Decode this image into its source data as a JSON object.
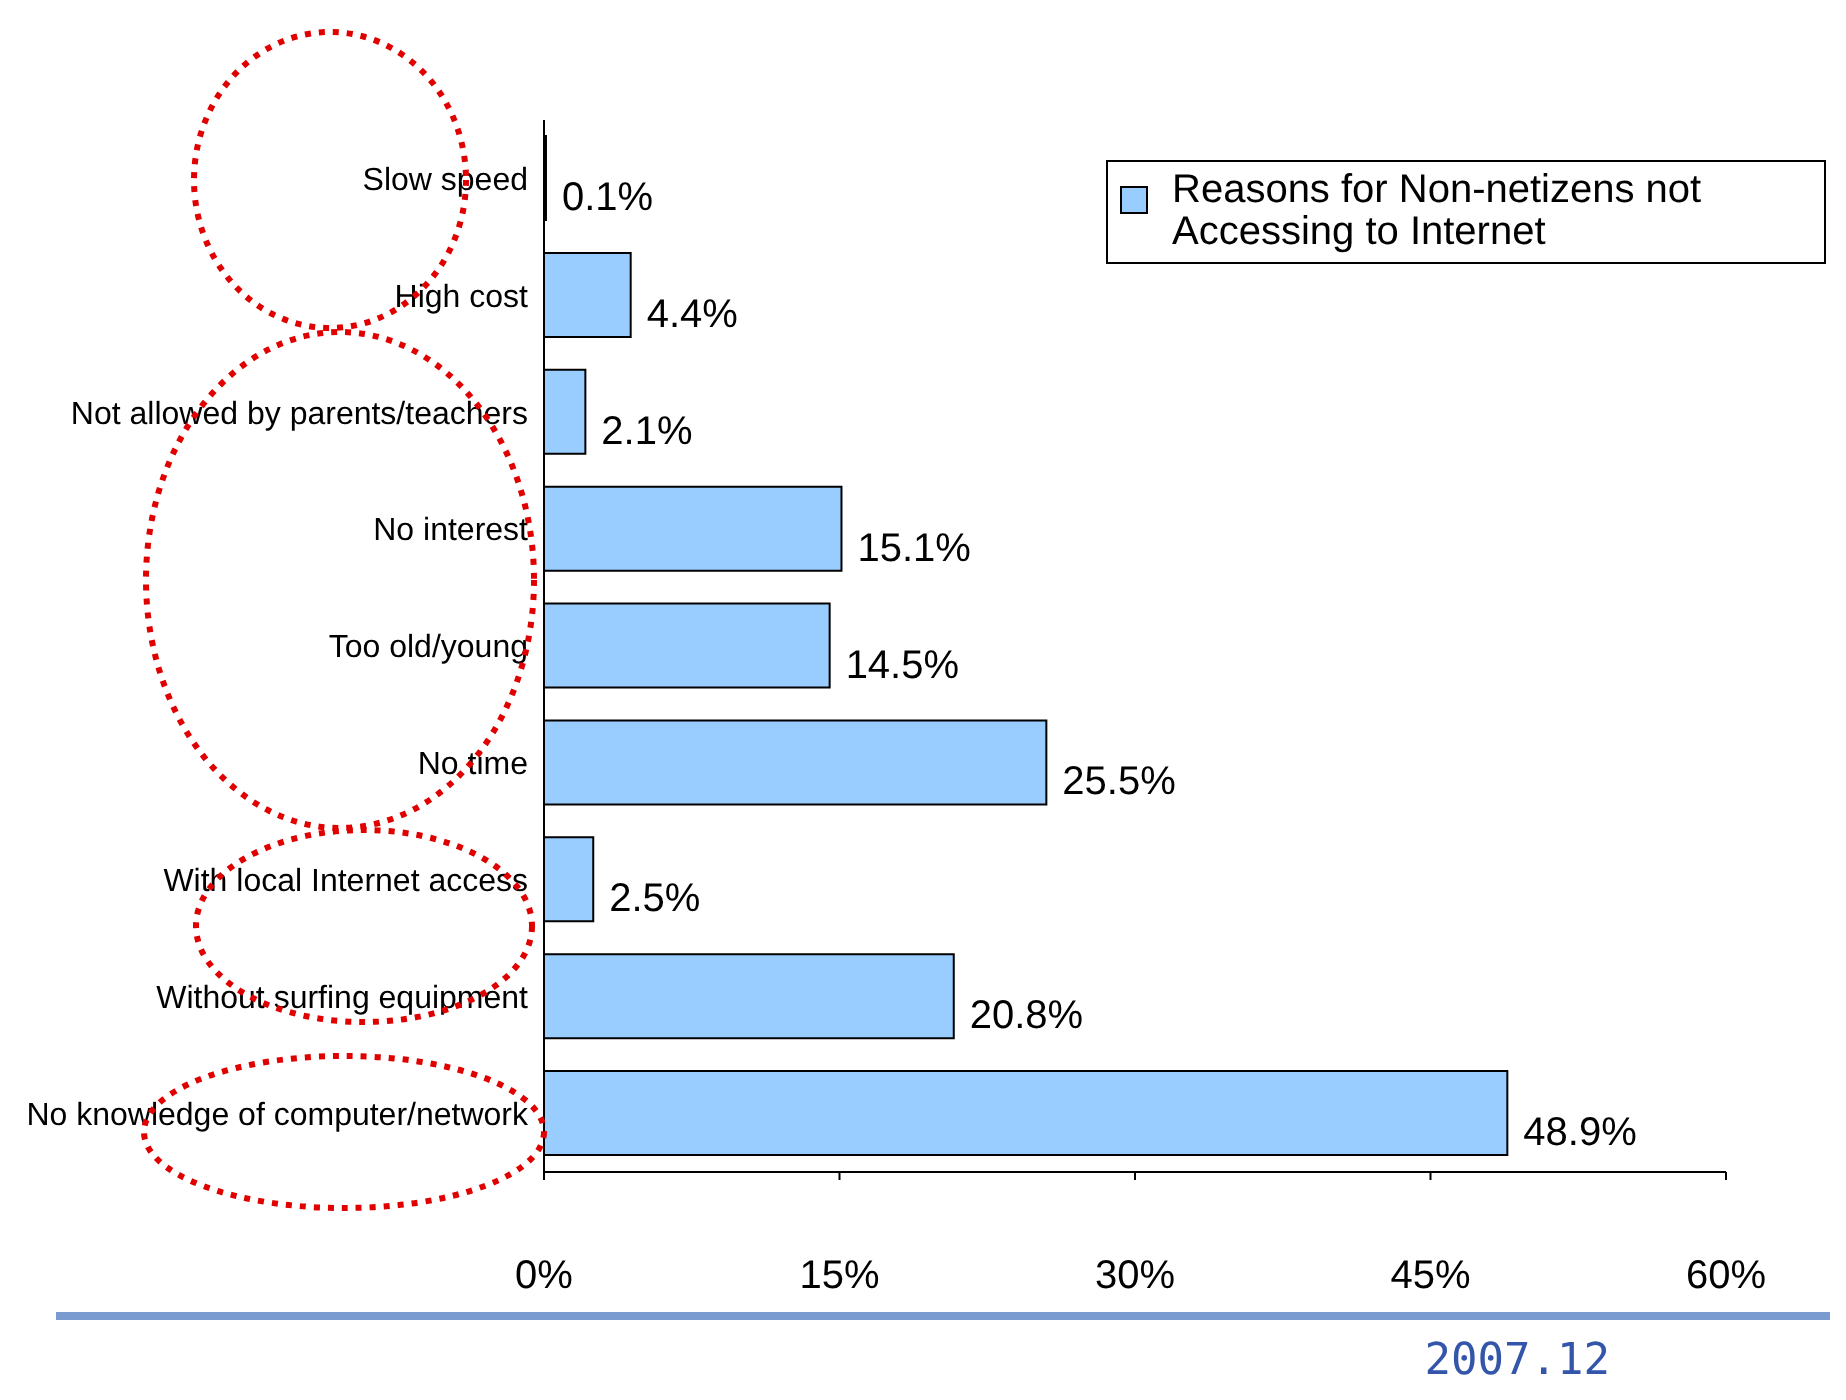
{
  "chart_data": {
    "type": "bar",
    "orientation": "horizontal",
    "categories": [
      "Slow speed",
      "High cost",
      "Not allowed by parents/teachers",
      "No interest",
      "Too old/young",
      "No time",
      "With local Internet access",
      "Without surfing equipment",
      "No knowledge of computer/network"
    ],
    "series": [
      {
        "name": "Reasons for Non-netizens not Accessing to Internet",
        "color": "#99ccff",
        "values": [
          0.1,
          4.4,
          2.1,
          15.1,
          14.5,
          25.5,
          2.5,
          20.8,
          48.9
        ],
        "value_labels": [
          "0.1%",
          "4.4%",
          "2.1%",
          "15.1%",
          "14.5%",
          "25.5%",
          "2.5%",
          "20.8%",
          "48.9%"
        ]
      }
    ],
    "xlim": [
      0,
      60
    ],
    "xticks": [
      {
        "value": 0,
        "label": "0%"
      },
      {
        "value": 15,
        "label": "15%"
      },
      {
        "value": 30,
        "label": "30%"
      },
      {
        "value": 45,
        "label": "45%"
      },
      {
        "value": 60,
        "label": "60%"
      }
    ],
    "grid": false,
    "legend": "top right",
    "annotations": [
      "2007.12"
    ]
  }
}
